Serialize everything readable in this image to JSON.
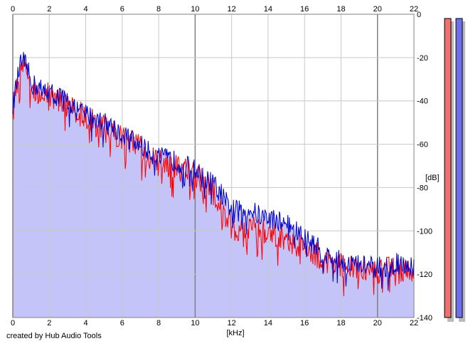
{
  "app": {
    "credit": "created by Hub Audio Tools"
  },
  "colors": {
    "background": "#ffffff",
    "grid_major": "#808080",
    "grid_minor": "#c8c8c8",
    "fill": "#c4c4f8",
    "channel_left": "#ff0000",
    "channel_right": "#0000cc",
    "meter_left": "#ee7070",
    "meter_right": "#7070ee",
    "meter_shadow": "#bbbbbb"
  },
  "chart_data": {
    "type": "line",
    "xlabel": "[kHz]",
    "ylabel": "[dB]",
    "xlim": [
      0,
      22
    ],
    "ylim": [
      -140,
      0
    ],
    "x_ticks": [
      "0",
      "2",
      "4",
      "6",
      "8",
      "10",
      "12",
      "14",
      "16",
      "18",
      "20",
      "22"
    ],
    "y_ticks": [
      "0",
      "-20",
      "-40",
      "-60",
      "-80",
      "-100",
      "-120",
      "-140"
    ],
    "grid": true,
    "x": [
      0,
      0.3,
      0.5,
      0.8,
      1.0,
      1.5,
      2.0,
      2.5,
      3.0,
      3.5,
      4.0,
      4.5,
      5.0,
      5.5,
      6.0,
      6.5,
      7.0,
      7.5,
      8.0,
      8.5,
      9.0,
      9.5,
      10.0,
      10.5,
      11.0,
      11.5,
      12.0,
      12.5,
      13.0,
      13.5,
      14.0,
      14.5,
      15.0,
      15.5,
      16.0,
      16.5,
      17.0,
      17.5,
      18.0,
      18.5,
      19.0,
      19.5,
      20.0,
      20.5,
      21.0,
      21.5,
      22.0
    ],
    "series": [
      {
        "values": [
          -42,
          -28,
          -20,
          -25,
          -32,
          -34,
          -36,
          -38,
          -40,
          -44,
          -46,
          -48,
          -50,
          -52,
          -55,
          -58,
          -60,
          -64,
          -66,
          -67,
          -68,
          -70,
          -72,
          -76,
          -78,
          -84,
          -90,
          -91,
          -90,
          -93,
          -94,
          -95,
          -96,
          -100,
          -103,
          -106,
          -110,
          -113,
          -114,
          -115,
          -116,
          -116,
          -117,
          -116,
          -115,
          -116,
          -117
        ]
      },
      {
        "values": [
          -45,
          -30,
          -22,
          -28,
          -34,
          -36,
          -37,
          -39,
          -42,
          -45,
          -48,
          -50,
          -52,
          -54,
          -57,
          -59,
          -62,
          -66,
          -68,
          -70,
          -71,
          -72,
          -74,
          -78,
          -82,
          -90,
          -98,
          -100,
          -99,
          -100,
          -101,
          -102,
          -103,
          -106,
          -108,
          -110,
          -113,
          -115,
          -116,
          -117,
          -118,
          -118,
          -119,
          -118,
          -117,
          -118,
          -119
        ]
      }
    ],
    "level_meters": [
      {
        "level_db": 0
      },
      {
        "level_db": 0
      }
    ]
  }
}
